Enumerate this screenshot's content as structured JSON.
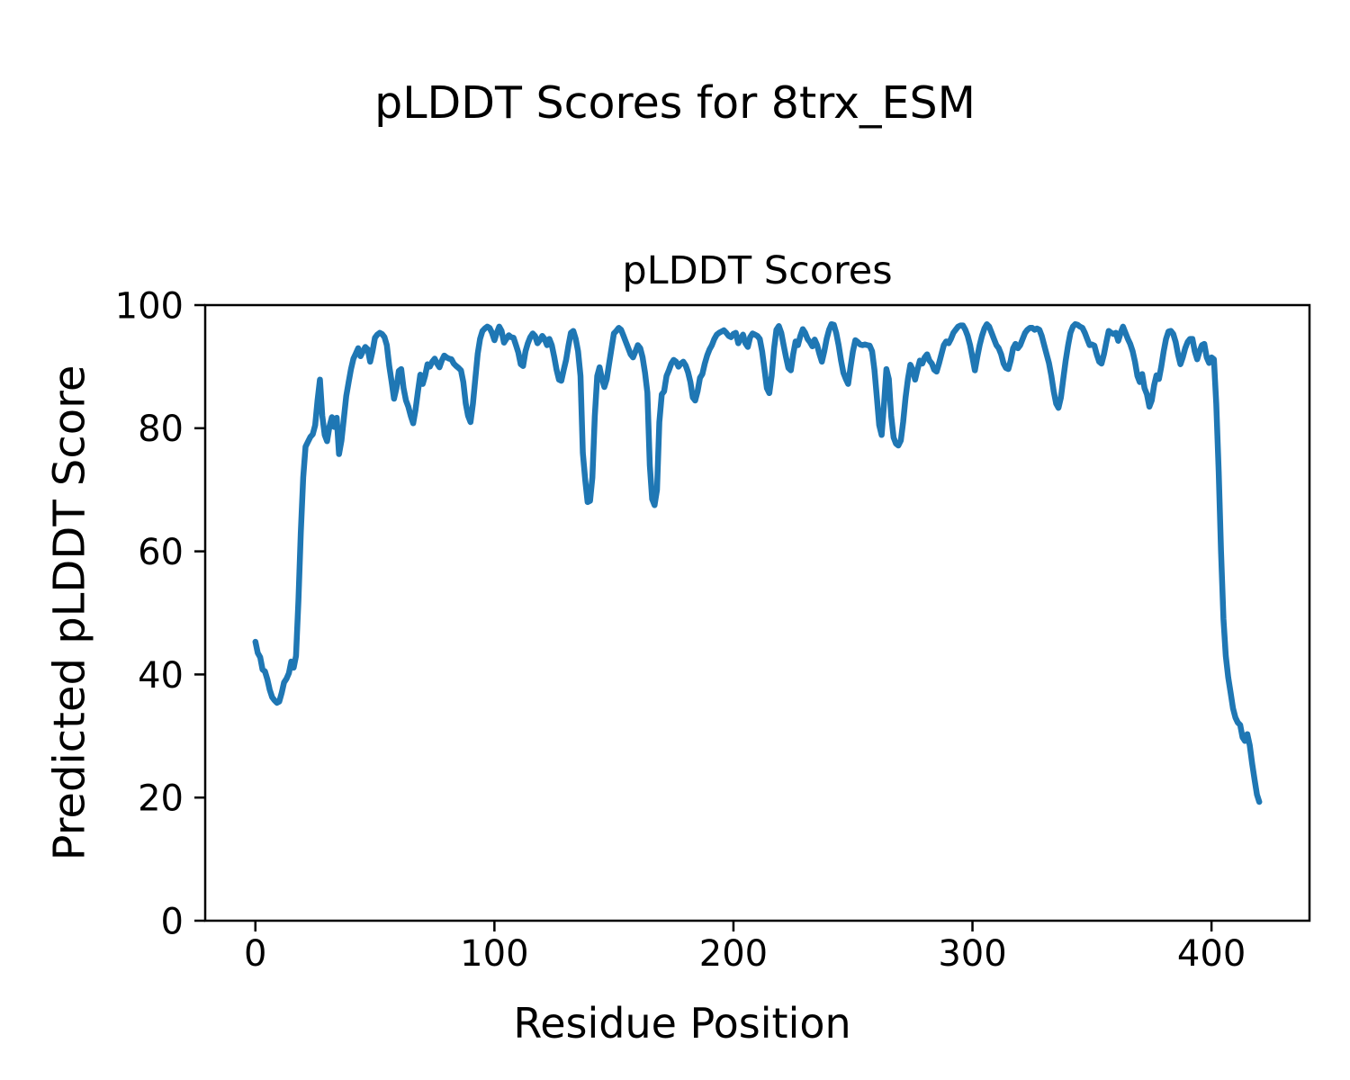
{
  "figure": {
    "suptitle": "pLDDT Scores for 8trx_ESM",
    "background_color": "#ffffff",
    "text_color": "#000000"
  },
  "chart_data": {
    "type": "line",
    "title": "pLDDT Scores",
    "xlabel": "Residue Position",
    "ylabel": "Predicted pLDDT Score",
    "xlim": [
      -21,
      441
    ],
    "ylim": [
      0,
      100
    ],
    "xticks": [
      0,
      100,
      200,
      300,
      400
    ],
    "yticks": [
      0,
      20,
      40,
      60,
      80,
      100
    ],
    "grid": false,
    "legend": "none",
    "line_color": "#1f77b4",
    "line_width": 6.5,
    "spine_color": "#000000",
    "series": [
      {
        "name": "pLDDT",
        "x_start": 0,
        "x_step": 1,
        "values": [
          45.3,
          43.5,
          42.8,
          40.8,
          40.5,
          39.2,
          37.5,
          36.3,
          35.8,
          35.4,
          35.6,
          37.0,
          38.7,
          39.3,
          40.2,
          42.1,
          41.1,
          43.0,
          52.0,
          63.0,
          72.0,
          77.0,
          77.8,
          78.6,
          79.0,
          80.5,
          84.5,
          87.9,
          82.0,
          78.9,
          77.9,
          80.3,
          81.8,
          80.2,
          81.7,
          75.8,
          78.0,
          81.5,
          85.2,
          87.5,
          89.6,
          91.3,
          92.1,
          93.0,
          91.7,
          92.5,
          93.2,
          92.8,
          90.8,
          92.5,
          94.7,
          95.2,
          95.5,
          95.3,
          94.8,
          93.5,
          90.1,
          87.5,
          84.8,
          86.5,
          89.3,
          89.6,
          86.5,
          84.5,
          83.5,
          82.0,
          80.8,
          83.0,
          86.0,
          88.7,
          87.2,
          88.5,
          90.4,
          90.0,
          90.8,
          91.3,
          90.5,
          89.9,
          91.0,
          91.8,
          91.5,
          91.3,
          91.2,
          90.5,
          90.1,
          89.8,
          89.4,
          87.5,
          84.0,
          82.0,
          81.0,
          84.0,
          88.0,
          92.1,
          94.5,
          95.8,
          96.2,
          96.5,
          96.3,
          95.5,
          94.3,
          95.5,
          96.5,
          95.8,
          93.9,
          94.5,
          95.1,
          94.8,
          94.7,
          93.5,
          92.3,
          90.4,
          90.1,
          92.5,
          93.8,
          94.8,
          95.4,
          95.0,
          93.8,
          94.3,
          95.0,
          94.5,
          93.5,
          94.5,
          93.5,
          91.6,
          89.5,
          87.9,
          87.7,
          89.5,
          91.1,
          93.5,
          95.5,
          95.8,
          94.5,
          92.5,
          88.5,
          76.0,
          71.5,
          68.0,
          68.2,
          72.0,
          82.0,
          88.5,
          89.9,
          88.0,
          86.7,
          88.0,
          90.5,
          93.0,
          95.4,
          95.8,
          96.3,
          96.0,
          95.0,
          94.0,
          93.0,
          92.0,
          91.5,
          92.5,
          93.5,
          93.0,
          91.5,
          89.0,
          85.8,
          74.0,
          68.5,
          67.5,
          70.0,
          81.0,
          85.5,
          86.0,
          88.5,
          89.4,
          90.5,
          91.1,
          90.8,
          90.0,
          90.5,
          90.8,
          90.2,
          89.1,
          87.5,
          85.0,
          84.5,
          86.0,
          88.2,
          88.8,
          90.5,
          91.8,
          92.8,
          93.5,
          94.5,
          95.2,
          95.5,
          95.7,
          95.9,
          95.5,
          95.0,
          94.8,
          95.3,
          95.5,
          93.8,
          94.5,
          95.2,
          93.8,
          93.2,
          94.8,
          95.4,
          95.2,
          95.0,
          94.5,
          92.5,
          89.5,
          86.5,
          85.7,
          88.5,
          93.0,
          96.0,
          96.6,
          95.5,
          93.5,
          91.5,
          89.8,
          89.4,
          92.0,
          94.1,
          93.5,
          95.0,
          96.1,
          95.5,
          94.5,
          94.0,
          93.3,
          94.4,
          93.5,
          92.0,
          90.8,
          92.5,
          94.5,
          96.0,
          96.9,
          96.8,
          95.5,
          93.5,
          91.0,
          89.0,
          88.0,
          87.2,
          90.0,
          92.5,
          94.3,
          94.0,
          93.6,
          93.5,
          93.6,
          93.5,
          93.4,
          92.5,
          89.5,
          85.0,
          80.5,
          78.9,
          84.0,
          89.6,
          88.0,
          82.0,
          78.5,
          77.5,
          77.2,
          78.0,
          81.0,
          85.0,
          88.0,
          90.3,
          89.5,
          87.9,
          89.5,
          91.0,
          90.5,
          91.5,
          92.0,
          91.0,
          90.5,
          89.5,
          89.2,
          90.5,
          92.0,
          93.5,
          94.1,
          93.8,
          94.5,
          95.5,
          96.0,
          96.5,
          96.7,
          96.7,
          96.0,
          95.0,
          93.5,
          91.5,
          89.4,
          91.5,
          93.5,
          95.0,
          96.2,
          96.9,
          96.5,
          95.5,
          94.5,
          93.5,
          93.0,
          92.0,
          90.5,
          89.8,
          89.6,
          91.0,
          93.0,
          93.7,
          93.0,
          93.5,
          94.5,
          95.5,
          96.0,
          96.3,
          96.3,
          96.0,
          96.2,
          96.0,
          95.0,
          93.5,
          92.0,
          90.6,
          88.5,
          86.0,
          84.0,
          83.3,
          85.0,
          88.0,
          91.0,
          93.5,
          95.5,
          96.5,
          96.9,
          96.8,
          96.5,
          96.3,
          95.5,
          94.5,
          93.5,
          93.6,
          93.4,
          92.0,
          90.8,
          90.5,
          92.0,
          94.0,
          95.8,
          95.5,
          95.3,
          95.5,
          94.2,
          95.5,
          96.5,
          95.5,
          94.5,
          93.7,
          92.5,
          90.8,
          88.5,
          87.5,
          88.8,
          86.5,
          85.5,
          83.5,
          84.5,
          87.0,
          88.6,
          88.0,
          90.0,
          92.5,
          94.5,
          95.7,
          95.8,
          95.3,
          94.0,
          92.0,
          90.4,
          91.5,
          93.0,
          94.0,
          94.5,
          94.5,
          92.5,
          91.2,
          92.5,
          93.5,
          93.7,
          91.5,
          90.6,
          91.5,
          91.2,
          84.0,
          73.0,
          60.0,
          49.0,
          43.0,
          39.5,
          37.0,
          34.5,
          33.0,
          32.2,
          31.8,
          29.8,
          29.2,
          30.3,
          28.5,
          25.5,
          23.0,
          20.5,
          19.3
        ]
      }
    ]
  }
}
